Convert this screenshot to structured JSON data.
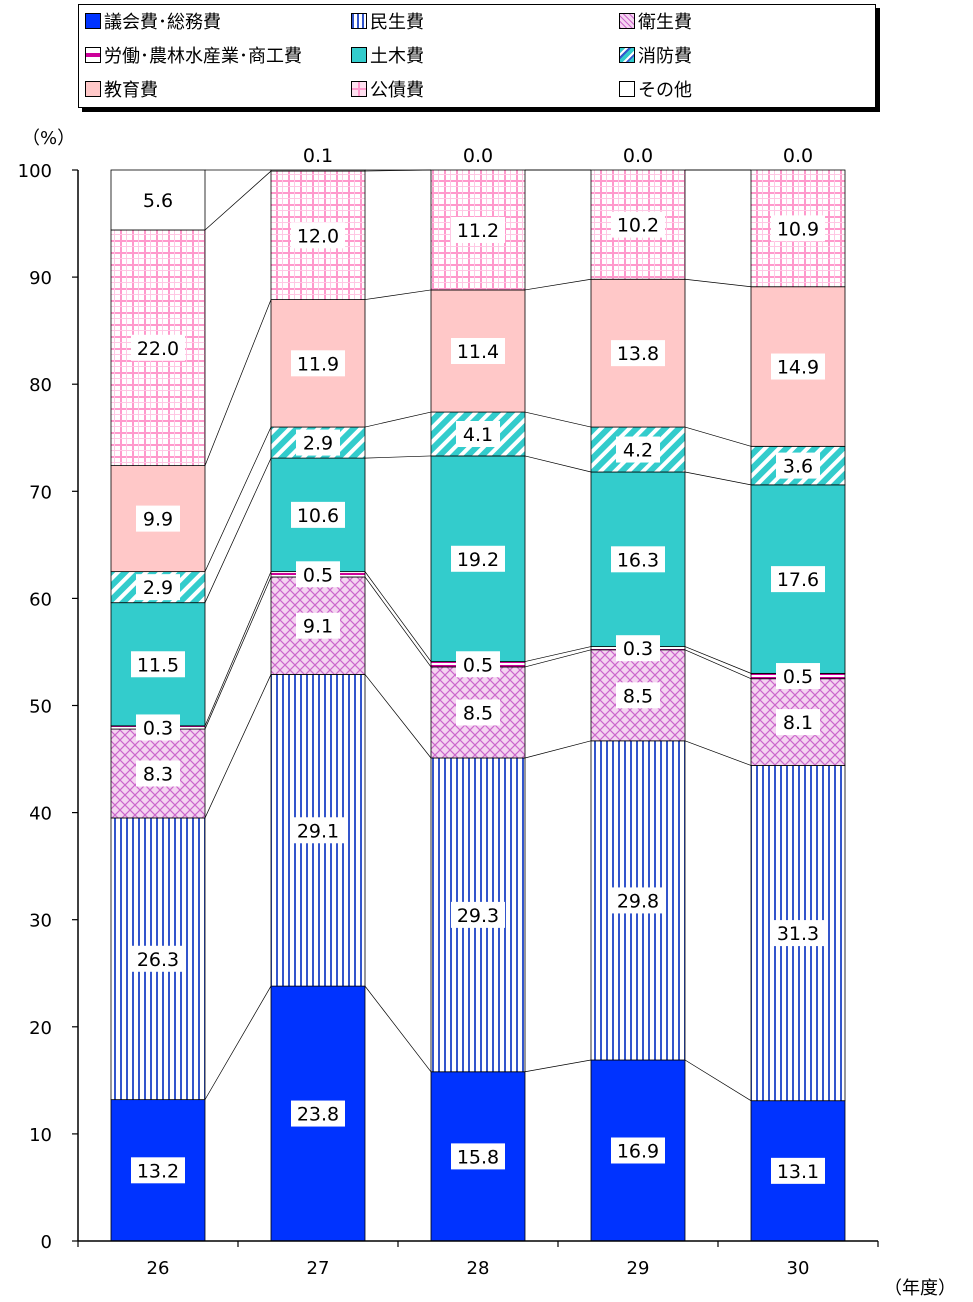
{
  "chart_data": {
    "type": "bar",
    "stacked": true,
    "percent_stacked": true,
    "xlabel": "（年度）",
    "ylabel": "（%）",
    "ylim": [
      0,
      100
    ],
    "yticks": [
      "0",
      "10",
      "20",
      "30",
      "40",
      "50",
      "60",
      "70",
      "80",
      "90",
      "100"
    ],
    "categories": [
      "26",
      "27",
      "28",
      "29",
      "30"
    ],
    "grid": false,
    "legend_position": "top",
    "series": [
      {
        "name": "議会費･総務費",
        "color": "#0033FF",
        "pattern": "solid",
        "values": [
          13.2,
          23.8,
          15.8,
          16.9,
          13.1
        ],
        "labels": [
          "13.2",
          "23.8",
          "15.8",
          "16.9",
          "13.1"
        ]
      },
      {
        "name": "民生費",
        "color": "#3355CC",
        "pattern": "vertical-lines",
        "values": [
          26.3,
          29.1,
          29.3,
          29.8,
          31.3
        ],
        "labels": [
          "26.3",
          "29.1",
          "29.3",
          "29.8",
          "31.3"
        ]
      },
      {
        "name": "衛生費",
        "color": "#CC66CC",
        "pattern": "crosshatch",
        "values": [
          8.3,
          9.1,
          8.5,
          8.5,
          8.1
        ],
        "labels": [
          "8.3",
          "9.1",
          "8.5",
          "8.5",
          "8.1"
        ]
      },
      {
        "name": "労働･農林水産業･商工費",
        "color": "#CC0099",
        "pattern": "horizontal-lines",
        "values": [
          0.3,
          0.5,
          0.5,
          0.3,
          0.5
        ],
        "labels": [
          "0.3",
          "0.5",
          "0.5",
          "0.3",
          "0.5"
        ]
      },
      {
        "name": "土木費",
        "color": "#33CCCC",
        "pattern": "solid",
        "values": [
          11.5,
          10.6,
          19.2,
          16.3,
          17.6
        ],
        "labels": [
          "11.5",
          "10.6",
          "19.2",
          "16.3",
          "17.6"
        ]
      },
      {
        "name": "消防費",
        "color": "#33CCCC",
        "pattern": "diagonal",
        "values": [
          2.9,
          2.9,
          4.1,
          4.2,
          3.6
        ],
        "labels": [
          "2.9",
          "2.9",
          "4.1",
          "4.2",
          "3.6"
        ]
      },
      {
        "name": "教育費",
        "color": "#FFC8C8",
        "pattern": "solid",
        "values": [
          9.9,
          11.9,
          11.4,
          13.8,
          14.9
        ],
        "labels": [
          "9.9",
          "11.9",
          "11.4",
          "13.8",
          "14.9"
        ]
      },
      {
        "name": "公債費",
        "color": "#FF99CC",
        "pattern": "grid",
        "values": [
          22.0,
          12.0,
          11.2,
          10.2,
          10.9
        ],
        "labels": [
          "22.0",
          "12.0",
          "11.2",
          "10.2",
          "10.9"
        ]
      },
      {
        "name": "その他",
        "color": "#FFFFFF",
        "pattern": "solid",
        "values": [
          5.6,
          0.1,
          0.0,
          0.0,
          0.0
        ],
        "labels": [
          "5.6",
          "0.1",
          "0.0",
          "0.0",
          "0.0"
        ]
      }
    ]
  }
}
